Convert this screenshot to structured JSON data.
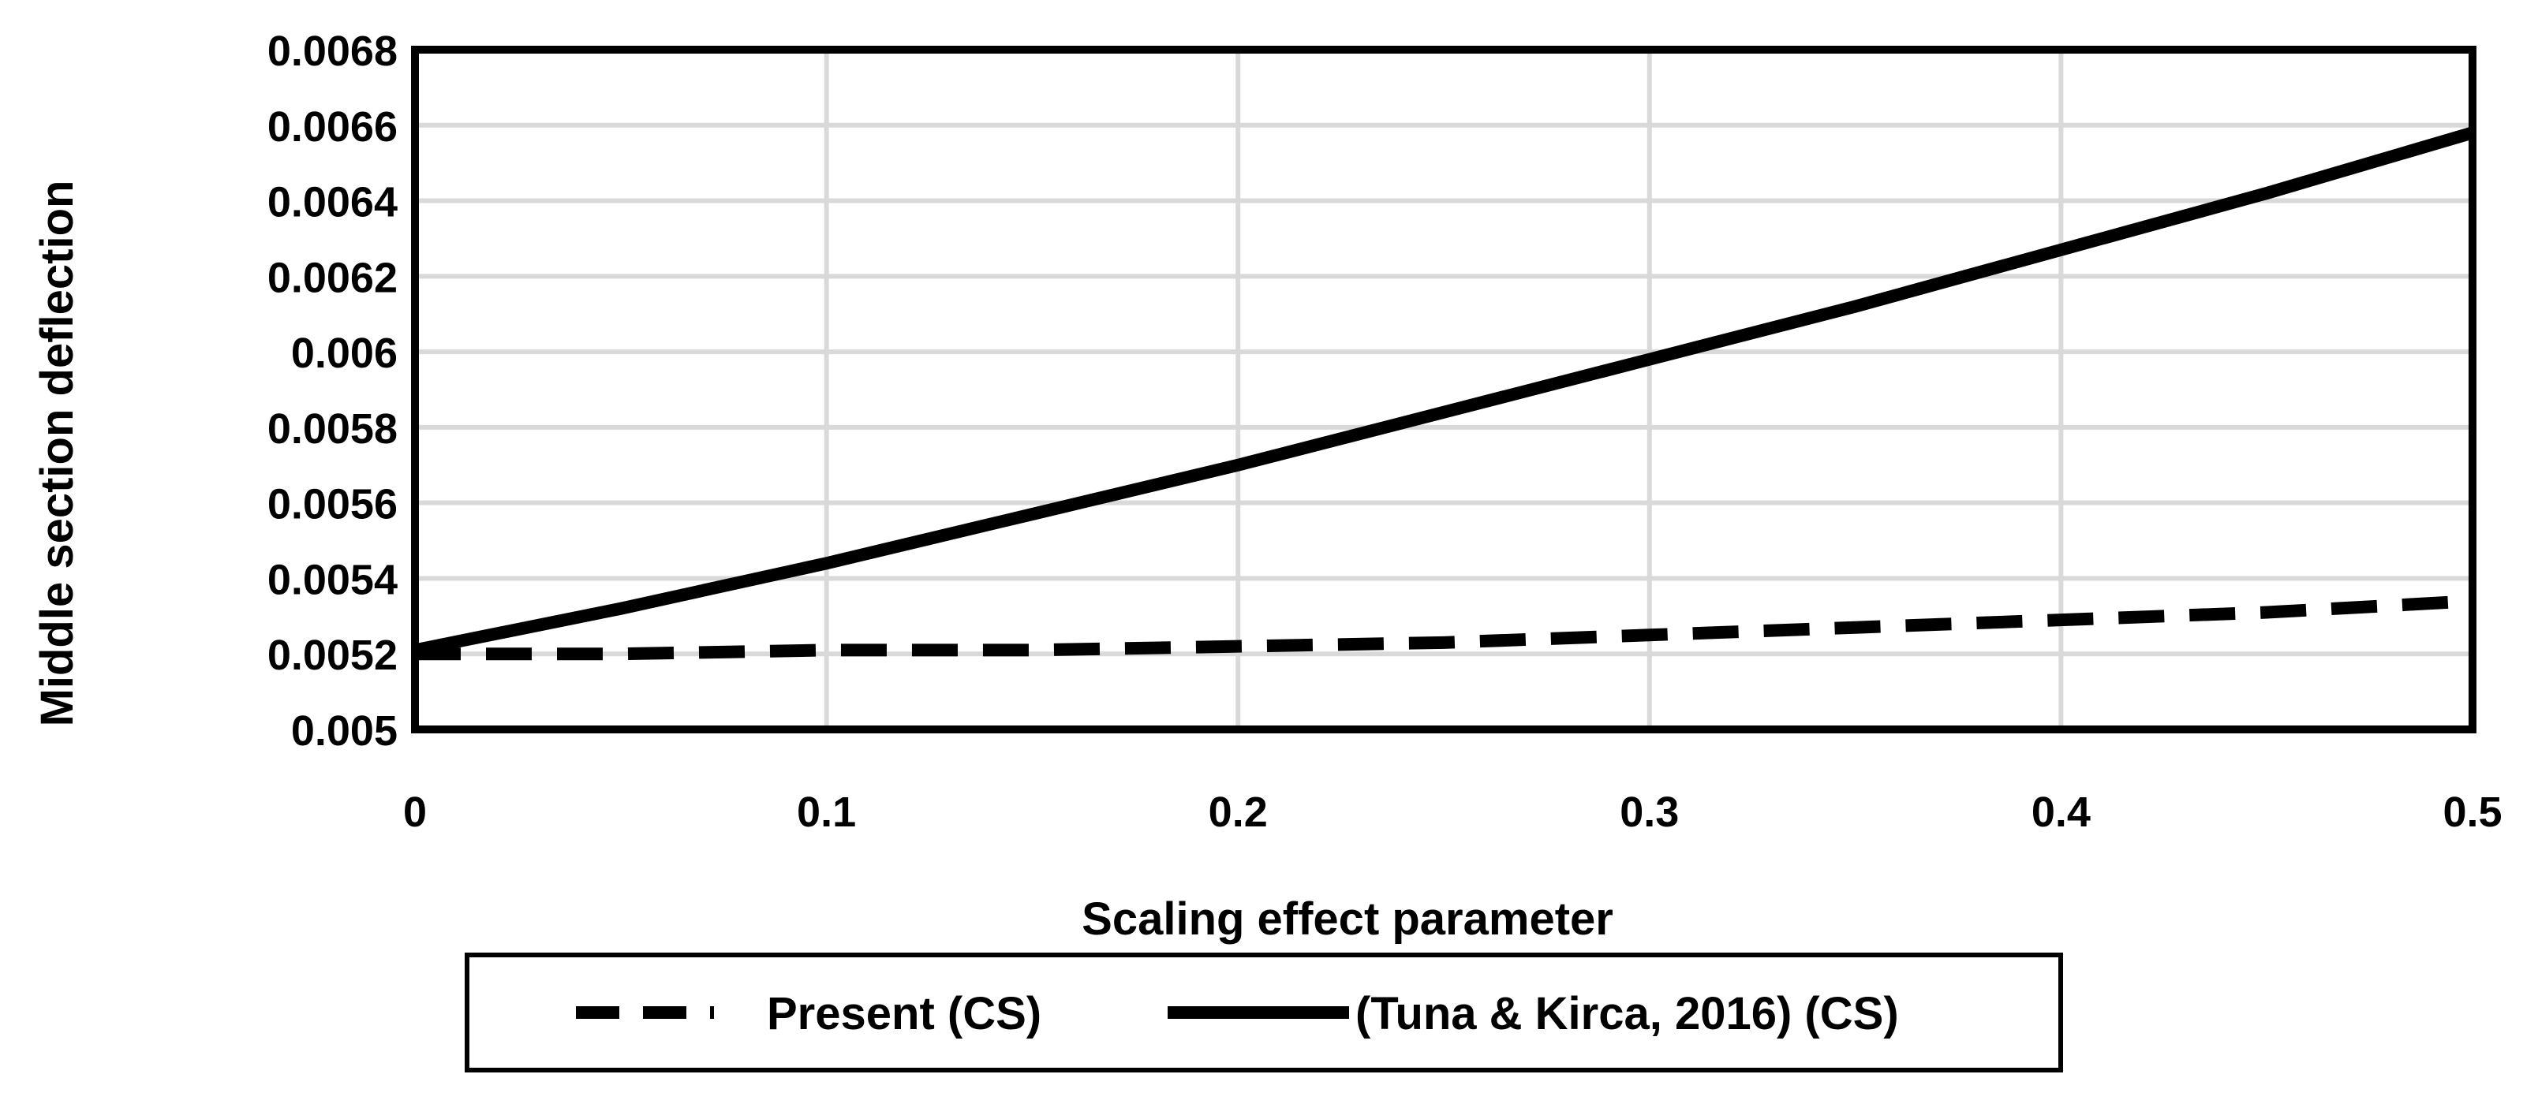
{
  "chart_data": {
    "type": "line",
    "title": "",
    "xlabel": "Scaling effect parameter",
    "ylabel": "Middle section deflection",
    "xlim": [
      0,
      0.5
    ],
    "ylim": [
      0.005,
      0.0068
    ],
    "x_ticks": [
      "0",
      "0.1",
      "0.2",
      "0.3",
      "0.4",
      "0.5"
    ],
    "y_ticks": [
      "0.005",
      "0.0052",
      "0.0054",
      "0.0056",
      "0.0058",
      "0.006",
      "0.0062",
      "0.0064",
      "0.0066",
      "0.0068"
    ],
    "grid": true,
    "legend_position": "bottom",
    "series": [
      {
        "name": "Present (CS)",
        "style": "dashed",
        "color": "#000000",
        "x": [
          0,
          0.05,
          0.1,
          0.15,
          0.2,
          0.25,
          0.3,
          0.35,
          0.4,
          0.45,
          0.5
        ],
        "values": [
          0.0052,
          0.0052,
          0.00521,
          0.00521,
          0.00522,
          0.00523,
          0.00525,
          0.00527,
          0.00529,
          0.00531,
          0.00534
        ]
      },
      {
        "name": "(Tuna & Kirca, 2016) (CS)",
        "style": "solid",
        "color": "#000000",
        "x": [
          0,
          0.05,
          0.1,
          0.15,
          0.2,
          0.25,
          0.3,
          0.35,
          0.4,
          0.45,
          0.5
        ],
        "values": [
          0.00521,
          0.00532,
          0.00544,
          0.00557,
          0.0057,
          0.00584,
          0.00598,
          0.00612,
          0.00627,
          0.00642,
          0.00658
        ]
      }
    ]
  }
}
